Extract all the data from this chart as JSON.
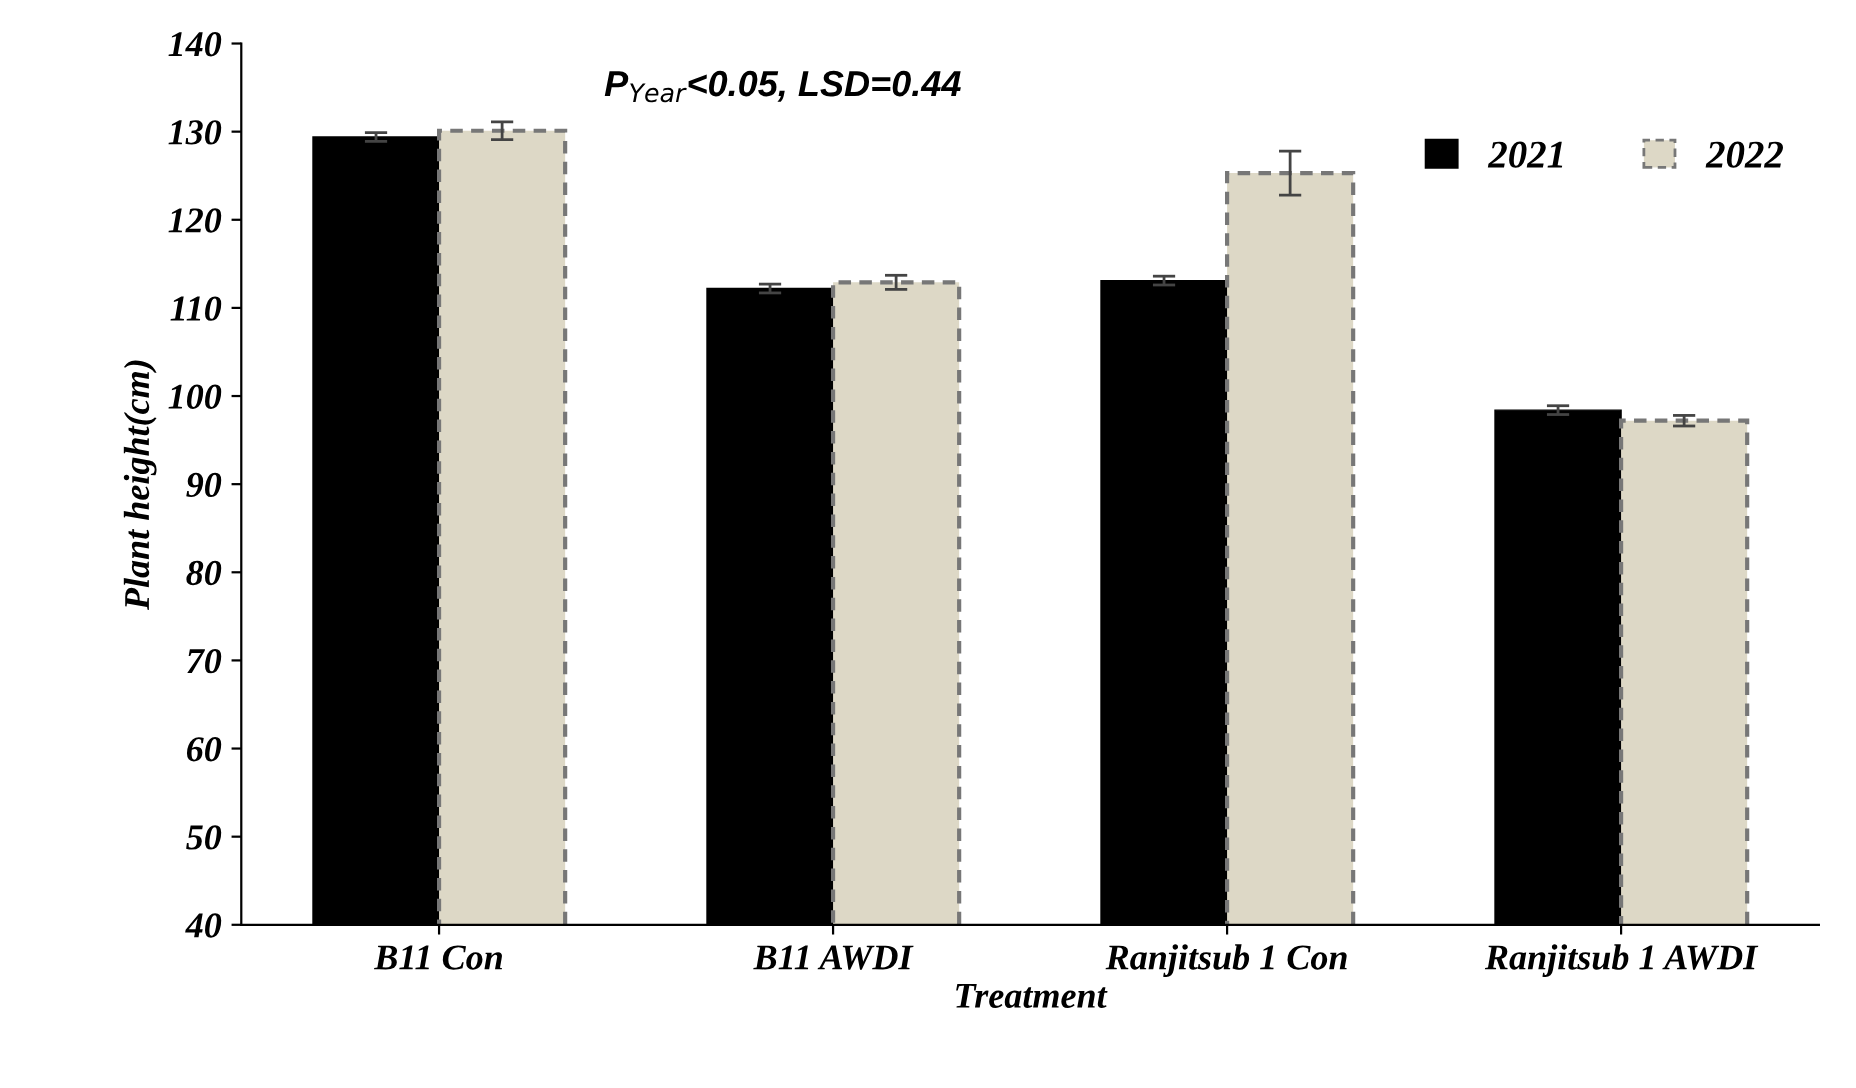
{
  "chart_data": {
    "type": "bar",
    "xlabel": "Treatment",
    "ylabel": "Plant height(cm)",
    "categories": [
      "B11 Con",
      "B11 AWDI",
      "Ranjitsub 1 Con",
      "Ranjitsub 1 AWDI"
    ],
    "series": [
      {
        "name": "2021",
        "color": "#000000",
        "values": [
          129.4,
          112.2,
          113.1,
          98.4
        ],
        "errors": [
          0.5,
          0.5,
          0.5,
          0.5
        ]
      },
      {
        "name": "2022",
        "color": "#ddd8c6",
        "values": [
          130.1,
          112.9,
          125.3,
          97.2
        ],
        "errors": [
          1.0,
          0.8,
          2.5,
          0.6
        ],
        "line_style": "dashed"
      }
    ],
    "ylim": [
      40,
      140
    ],
    "yticks": [
      40,
      50,
      60,
      70,
      80,
      90,
      100,
      110,
      120,
      130,
      140
    ],
    "annotations": [
      "P$_{Year}$<0.05, LSD=0.44"
    ],
    "legend": "top right",
    "grid": false
  }
}
